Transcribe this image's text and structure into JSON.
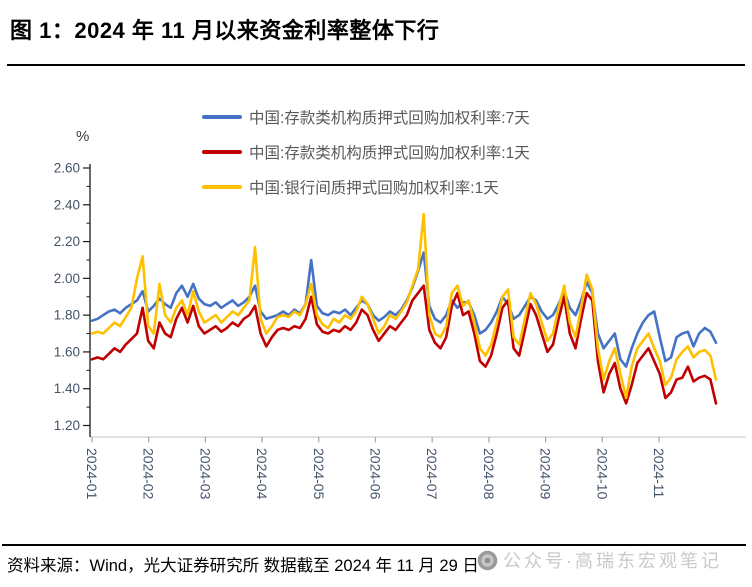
{
  "title": "图 1：2024 年 11 月以来资金利率整体下行",
  "legend": [
    {
      "label": "中国:存款类机构质押式回购加权利率:7天",
      "color": "#4472C4"
    },
    {
      "label": "中国:存款类机构质押式回购加权利率:1天",
      "color": "#C00000"
    },
    {
      "label": "中国:银行间质押式回购加权利率:1天",
      "color": "#FFC000"
    }
  ],
  "footer": {
    "source": "资料来源：Wind，光大证券研究所  数据截至 2024 年 11 月 29 日",
    "watermark": "公众号·高瑞东宏观笔记",
    "watermark_icon": "official-account-logo"
  },
  "chart_data": {
    "type": "line",
    "title": "图 1：2024 年 11 月以来资金利率整体下行",
    "unit": "%",
    "xlabel": "",
    "ylabel": "%",
    "ylim": [
      1.2,
      2.6
    ],
    "y_ticks": [
      "2.60",
      "2.40",
      "2.20",
      "2.00",
      "1.80",
      "1.60",
      "1.40",
      "1.20"
    ],
    "x_ticks": [
      "2024-01",
      "2024-02",
      "2024-03",
      "2024-04",
      "2024-05",
      "2024-06",
      "2024-07",
      "2024-08",
      "2024-09",
      "2024-10",
      "2024-11"
    ],
    "legend_position": "top",
    "grid": false,
    "axis_colors": {
      "y_axis": "#1a1a1a",
      "x_axis": "#d9d9d9",
      "tick_label": "#44546A"
    },
    "series": [
      {
        "name": "中国:存款类机构质押式回购加权利率:7天",
        "color": "#4472C4",
        "values": [
          1.77,
          1.78,
          1.8,
          1.82,
          1.83,
          1.81,
          1.84,
          1.86,
          1.88,
          1.93,
          1.82,
          1.85,
          1.89,
          1.86,
          1.84,
          1.92,
          1.96,
          1.9,
          1.97,
          1.89,
          1.86,
          1.85,
          1.87,
          1.84,
          1.86,
          1.88,
          1.85,
          1.87,
          1.9,
          1.96,
          1.82,
          1.78,
          1.79,
          1.8,
          1.82,
          1.8,
          1.83,
          1.81,
          1.86,
          2.1,
          1.85,
          1.81,
          1.8,
          1.82,
          1.81,
          1.83,
          1.8,
          1.84,
          1.88,
          1.86,
          1.8,
          1.77,
          1.79,
          1.82,
          1.8,
          1.83,
          1.88,
          1.95,
          2.04,
          2.14,
          1.85,
          1.78,
          1.76,
          1.8,
          1.88,
          1.84,
          1.87,
          1.87,
          1.8,
          1.7,
          1.72,
          1.76,
          1.82,
          1.9,
          1.86,
          1.78,
          1.8,
          1.85,
          1.9,
          1.88,
          1.82,
          1.78,
          1.8,
          1.86,
          1.93,
          1.84,
          1.8,
          1.88,
          1.98,
          1.92,
          1.7,
          1.62,
          1.66,
          1.7,
          1.56,
          1.52,
          1.62,
          1.7,
          1.76,
          1.8,
          1.82,
          1.68,
          1.55,
          1.57,
          1.68,
          1.7,
          1.71,
          1.63,
          1.7,
          1.73,
          1.71,
          1.65
        ]
      },
      {
        "name": "中国:存款类机构质押式回购加权利率:1天",
        "color": "#C00000",
        "values": [
          1.56,
          1.57,
          1.56,
          1.59,
          1.62,
          1.6,
          1.64,
          1.67,
          1.7,
          1.84,
          1.66,
          1.62,
          1.76,
          1.7,
          1.68,
          1.78,
          1.84,
          1.76,
          1.85,
          1.74,
          1.7,
          1.72,
          1.74,
          1.71,
          1.73,
          1.76,
          1.74,
          1.78,
          1.8,
          1.85,
          1.7,
          1.63,
          1.68,
          1.72,
          1.73,
          1.72,
          1.74,
          1.73,
          1.78,
          1.9,
          1.75,
          1.71,
          1.7,
          1.72,
          1.71,
          1.74,
          1.72,
          1.76,
          1.83,
          1.8,
          1.72,
          1.66,
          1.7,
          1.74,
          1.72,
          1.76,
          1.8,
          1.88,
          1.92,
          1.96,
          1.72,
          1.65,
          1.62,
          1.68,
          1.85,
          1.92,
          1.8,
          1.82,
          1.7,
          1.55,
          1.52,
          1.58,
          1.7,
          1.84,
          1.88,
          1.62,
          1.58,
          1.72,
          1.86,
          1.8,
          1.7,
          1.6,
          1.64,
          1.78,
          1.9,
          1.7,
          1.62,
          1.78,
          1.92,
          1.88,
          1.55,
          1.38,
          1.48,
          1.54,
          1.4,
          1.32,
          1.42,
          1.54,
          1.58,
          1.62,
          1.55,
          1.48,
          1.35,
          1.38,
          1.45,
          1.46,
          1.52,
          1.44,
          1.46,
          1.47,
          1.45,
          1.32
        ]
      },
      {
        "name": "中国:银行间质押式回购加权利率:1天",
        "color": "#FFC000",
        "values": [
          1.7,
          1.71,
          1.7,
          1.73,
          1.76,
          1.74,
          1.79,
          1.84,
          2.0,
          2.12,
          1.74,
          1.7,
          1.97,
          1.8,
          1.76,
          1.84,
          1.88,
          1.8,
          1.93,
          1.82,
          1.76,
          1.78,
          1.8,
          1.76,
          1.79,
          1.82,
          1.8,
          1.84,
          1.88,
          2.17,
          1.78,
          1.7,
          1.74,
          1.79,
          1.8,
          1.79,
          1.82,
          1.8,
          1.86,
          1.97,
          1.8,
          1.75,
          1.73,
          1.78,
          1.76,
          1.8,
          1.78,
          1.82,
          1.9,
          1.86,
          1.78,
          1.7,
          1.74,
          1.8,
          1.78,
          1.82,
          1.87,
          1.96,
          2.05,
          2.35,
          1.8,
          1.7,
          1.68,
          1.74,
          1.92,
          1.96,
          1.85,
          1.88,
          1.76,
          1.62,
          1.58,
          1.64,
          1.76,
          1.9,
          1.94,
          1.68,
          1.64,
          1.78,
          1.92,
          1.86,
          1.76,
          1.66,
          1.7,
          1.84,
          1.96,
          1.76,
          1.68,
          1.84,
          2.02,
          1.94,
          1.62,
          1.45,
          1.55,
          1.62,
          1.48,
          1.35,
          1.52,
          1.62,
          1.66,
          1.7,
          1.62,
          1.55,
          1.42,
          1.46,
          1.56,
          1.6,
          1.63,
          1.57,
          1.6,
          1.61,
          1.58,
          1.45
        ]
      }
    ]
  }
}
